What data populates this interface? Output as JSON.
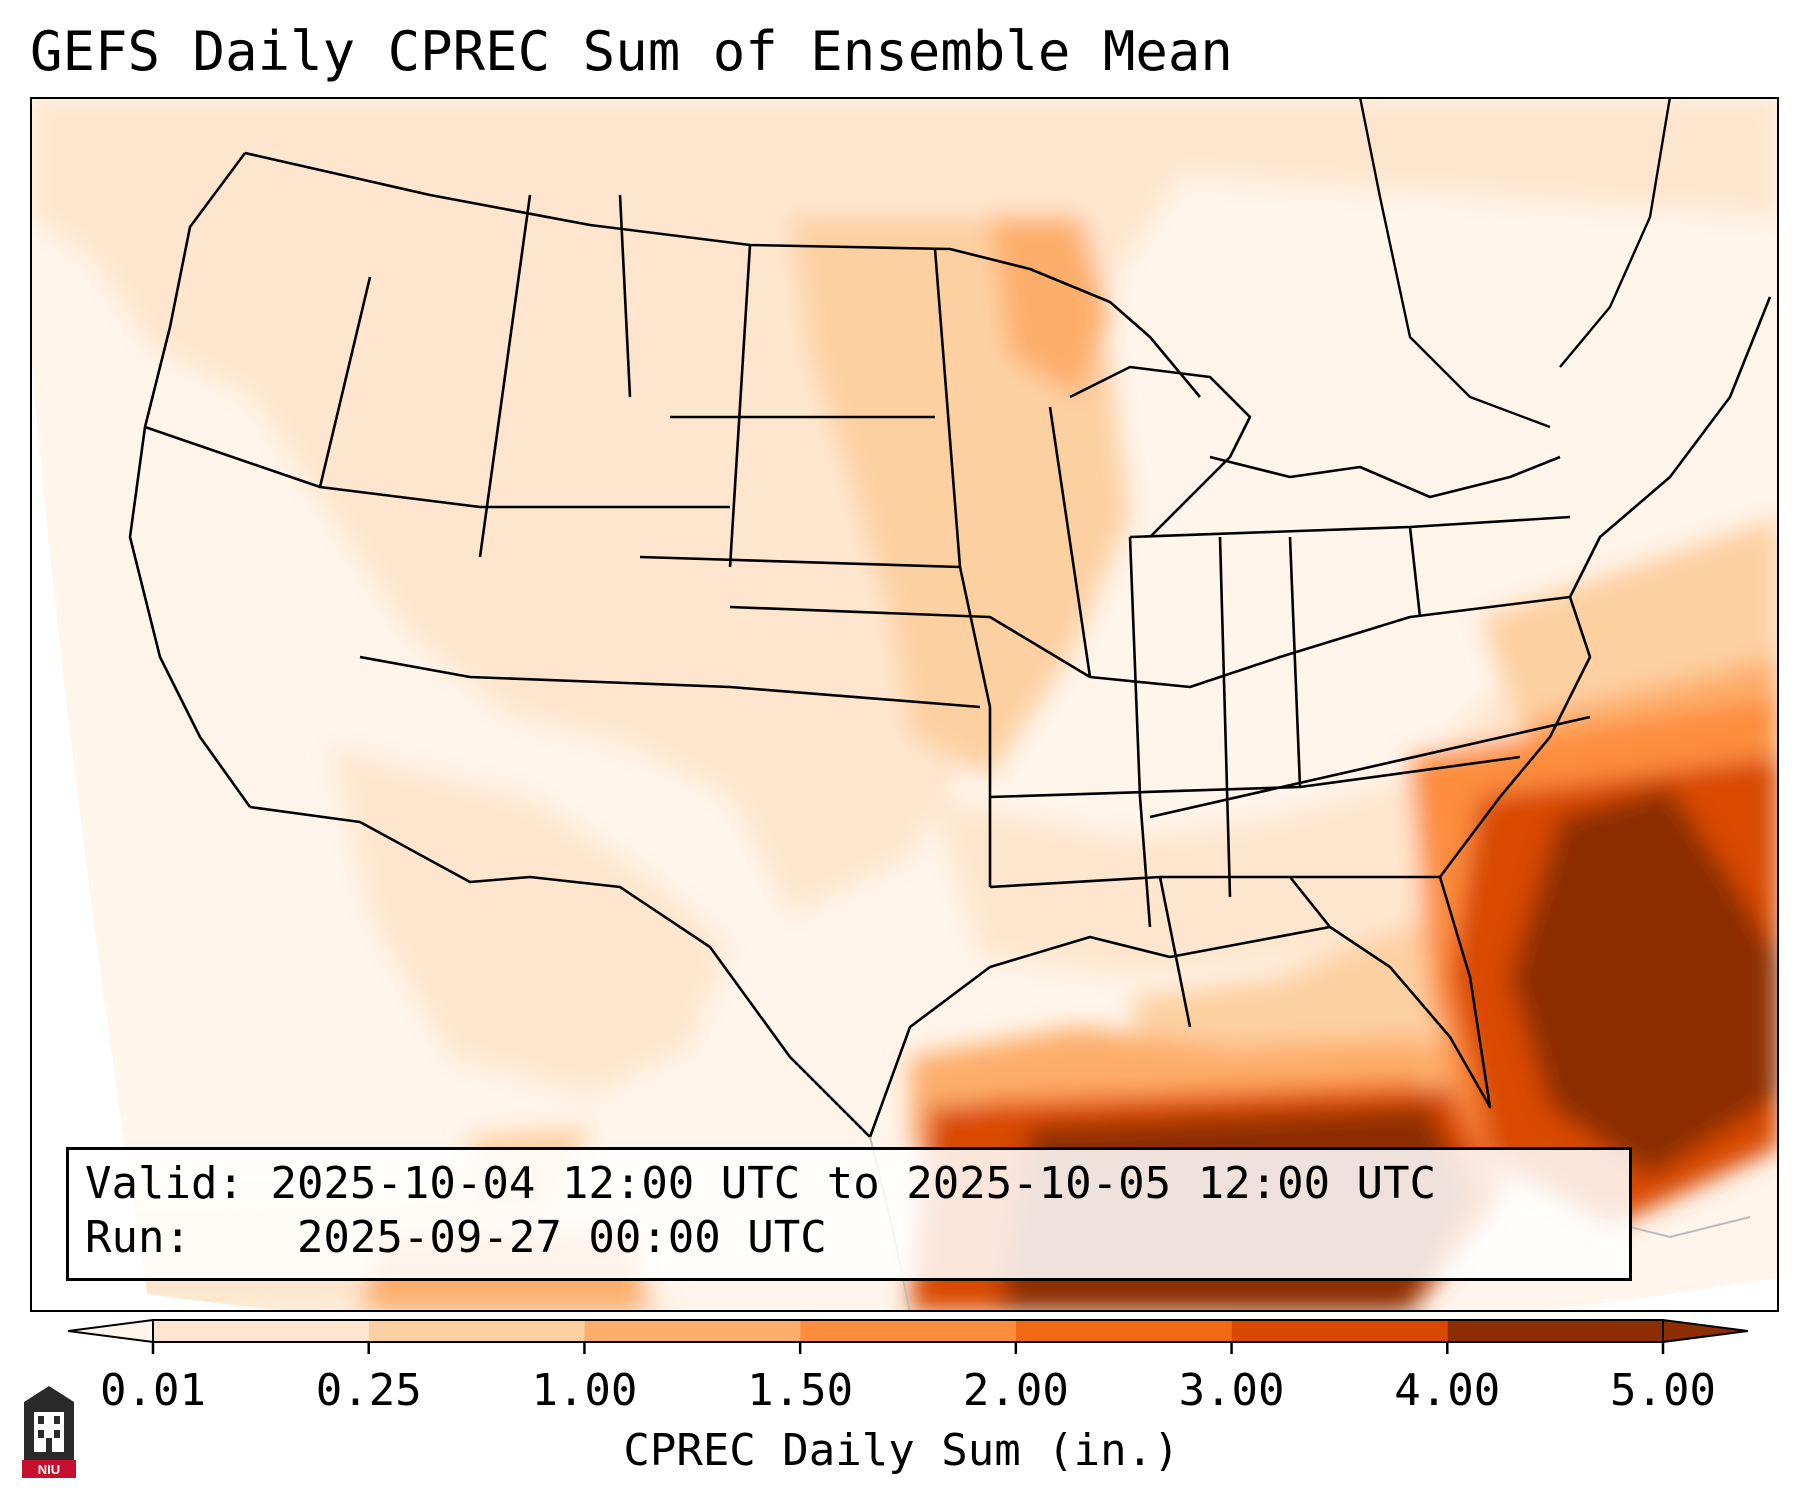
{
  "title": "GEFS Daily CPREC Sum of Ensemble Mean",
  "info": {
    "valid_label": "Valid:",
    "valid_value": "2025-10-04 12:00 UTC to 2025-10-05 12:00 UTC",
    "run_label": "Run:",
    "run_value": "2025-09-27 00:00 UTC"
  },
  "colorbar": {
    "label": "CPREC Daily Sum (in.)",
    "ticks": [
      "0.01",
      "0.25",
      "1.00",
      "1.50",
      "2.00",
      "3.00",
      "4.00",
      "5.00"
    ],
    "colors": [
      "#fff5eb",
      "#fee6ce",
      "#fdd0a2",
      "#fdae6b",
      "#fd8d3c",
      "#f16913",
      "#d94801",
      "#8c2d04"
    ],
    "extend": "both"
  },
  "logo": {
    "text": "NIU"
  },
  "map": {
    "region": "Contiguous United States",
    "colors": {
      "land_border": "#000000",
      "background": "#ffffff"
    }
  }
}
